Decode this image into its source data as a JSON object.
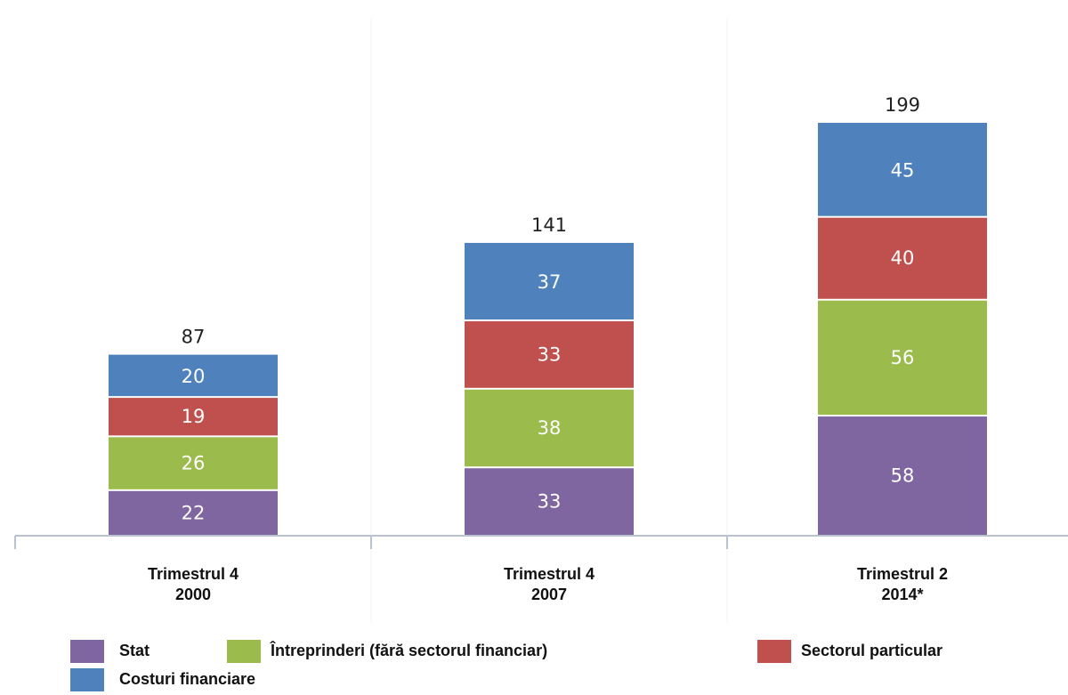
{
  "chart_data": {
    "type": "bar",
    "stacked": true,
    "categories": [
      [
        "Trimestrul 4",
        "2000"
      ],
      [
        "Trimestrul 4",
        "2007"
      ],
      [
        "Trimestrul 2",
        "2014*"
      ]
    ],
    "series": [
      {
        "name": "Stat",
        "color": "#8066a0",
        "values": [
          22,
          33,
          58
        ]
      },
      {
        "name": "Întreprinderi (fără sectorul financiar)",
        "color": "#9bbb4d",
        "values": [
          26,
          38,
          56
        ]
      },
      {
        "name": "Sectorul particular",
        "color": "#c0504d",
        "values": [
          19,
          33,
          40
        ]
      },
      {
        "name": "Costuri financiare",
        "color": "#4f81bd",
        "values": [
          20,
          37,
          45
        ]
      }
    ],
    "totals": [
      87,
      141,
      199
    ],
    "legend_position": "bottom",
    "grid": false,
    "ylim": [
      0,
      199
    ]
  }
}
